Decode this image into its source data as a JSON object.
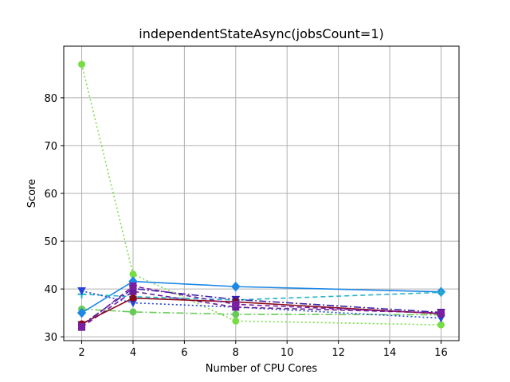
{
  "chart_data": {
    "type": "line",
    "title": "independentStateAsync(jobsCount=1)",
    "xlabel": "Number of CPU Cores",
    "ylabel": "Score",
    "xlim": [
      1.3,
      16.7
    ],
    "ylim": [
      29.2,
      90.8
    ],
    "xticks": [
      "2",
      "4",
      "6",
      "8",
      "10",
      "12",
      "14",
      "16"
    ],
    "yticks": [
      "30",
      "40",
      "50",
      "60",
      "70",
      "80"
    ],
    "grid": true,
    "x": [
      2,
      4,
      8,
      16
    ],
    "series": [
      {
        "color": "#77dd44",
        "dash": "2,3",
        "marker": "circle",
        "values": [
          87.0,
          43.1,
          33.3,
          32.5
        ]
      },
      {
        "color": "#66cc55",
        "dash": "9,3,2,3",
        "marker": "circle",
        "values": [
          35.8,
          35.2,
          34.7,
          34.6
        ]
      },
      {
        "color": "#1e88e5",
        "dash": "",
        "marker": "diamond",
        "values": [
          35.0,
          41.6,
          40.5,
          39.4
        ]
      },
      {
        "color": "#20b2c8",
        "dash": "6,4",
        "marker": "plus",
        "values": [
          38.9,
          38.4,
          37.7,
          39.3
        ]
      },
      {
        "color": "#2244dd",
        "dash": "2,3",
        "marker": "triangle-down",
        "values": [
          39.6,
          37.1,
          36.2,
          33.9
        ]
      },
      {
        "color": "#3a22a8",
        "dash": "9,3,2,3",
        "marker": "triangle-down",
        "values": [
          32.5,
          40.1,
          37.8,
          35.1
        ]
      },
      {
        "color": "#6a1b9a",
        "dash": "6,4",
        "marker": "square",
        "values": [
          32.0,
          39.5,
          36.2,
          35.0
        ]
      },
      {
        "color": "#8b0a1a",
        "dash": "",
        "marker": "circle",
        "values": [
          32.7,
          38.1,
          37.3,
          34.8
        ]
      },
      {
        "color": "#7b1fa2",
        "dash": "6,4",
        "marker": "square",
        "values": [
          32.1,
          40.6,
          36.8,
          34.9
        ]
      }
    ]
  }
}
